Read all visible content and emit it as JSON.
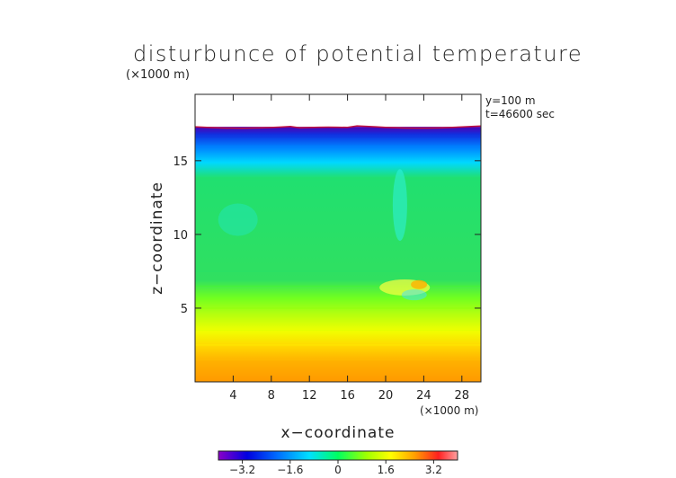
{
  "chart_data": {
    "type": "heatmap",
    "title": "disturbunce of potential temperature",
    "unit_label": "(×1000 m)",
    "xlabel": "x−coordinate",
    "ylabel": "z−coordinate",
    "x_unit_label": "(×1000 m)",
    "annotations": [
      "y=100 m",
      "t=46600 sec"
    ],
    "xlim": [
      0,
      30
    ],
    "ylim": [
      0,
      19.5
    ],
    "x_ticks": [
      4,
      8,
      12,
      16,
      20,
      24,
      28
    ],
    "x_tick_labels": [
      "4",
      "8",
      "12",
      "16",
      "20",
      "24",
      "28"
    ],
    "y_ticks": [
      5,
      10,
      15
    ],
    "y_tick_labels": [
      "5",
      "10",
      "15"
    ],
    "grid": false,
    "domain_top_z": 17.3,
    "colorbar": {
      "range": [
        -4,
        4
      ],
      "ticks": [
        -3.2,
        -1.6,
        0,
        1.6,
        3.2
      ],
      "tick_labels": [
        "−3.2",
        "−1.6",
        "0",
        "1.6",
        "3.2"
      ],
      "colors": [
        "#8a00c8",
        "#0000e0",
        "#0070ff",
        "#00e0ff",
        "#00ff60",
        "#a0ff00",
        "#ffff00",
        "#ffa000",
        "#ff2020",
        "#ff9090"
      ]
    },
    "field_bands": [
      {
        "z": [
          0,
          1.5
        ],
        "value": 2.8,
        "color": "#ffa000"
      },
      {
        "z": [
          1.5,
          2.5
        ],
        "value": 2.3,
        "color": "#ffc000"
      },
      {
        "z": [
          2.5,
          3.5
        ],
        "value": 1.8,
        "color": "#ffff00"
      },
      {
        "z": [
          3.5,
          5.0
        ],
        "value": 1.2,
        "color": "#d0ff00"
      },
      {
        "z": [
          5.0,
          6.5
        ],
        "value": 0.7,
        "color": "#80ff00"
      },
      {
        "z": [
          6.5,
          7.5
        ],
        "value": 0.3,
        "color": "#40ff20"
      },
      {
        "z": [
          7.5,
          15.0
        ],
        "value": 0.0,
        "color": "#20e070"
      },
      {
        "z": [
          15.0,
          16.0
        ],
        "value": -1.0,
        "color": "#00d0ff"
      },
      {
        "z": [
          16.0,
          16.6
        ],
        "value": -1.8,
        "color": "#0090ff"
      },
      {
        "z": [
          16.6,
          17.3
        ],
        "value": -2.8,
        "color": "#1030e0"
      }
    ]
  }
}
